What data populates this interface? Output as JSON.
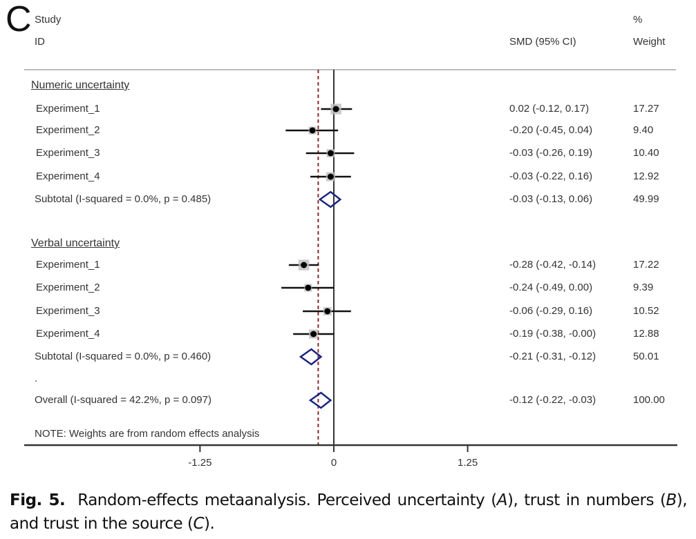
{
  "panel_letter": "C",
  "headers": {
    "study_line1": "Study",
    "study_line2": "ID",
    "smd": "SMD (95% CI)",
    "weight_line1": "%",
    "weight_line2": "Weight"
  },
  "chart_data": {
    "type": "forest",
    "title": "",
    "xlabel": "",
    "xlim": [
      -2.25,
      2.3
    ],
    "xticks": [
      -1.25,
      0,
      1.25
    ],
    "xtick_labels": [
      "-1.25",
      "0",
      "1.25"
    ],
    "null_line": 0,
    "overall_line": -0.12,
    "groups": [
      {
        "name": "Numeric uncertainty",
        "studies": [
          {
            "label": "Experiment_1",
            "smd": 0.02,
            "lo": -0.12,
            "hi": 0.17,
            "ci_text": "0.02 (-0.12, 0.17)",
            "weight": "17.27"
          },
          {
            "label": "Experiment_2",
            "smd": -0.2,
            "lo": -0.45,
            "hi": 0.04,
            "ci_text": "-0.20 (-0.45, 0.04)",
            "weight": "9.40"
          },
          {
            "label": "Experiment_3",
            "smd": -0.03,
            "lo": -0.26,
            "hi": 0.19,
            "ci_text": "-0.03 (-0.26, 0.19)",
            "weight": "10.40"
          },
          {
            "label": "Experiment_4",
            "smd": -0.03,
            "lo": -0.22,
            "hi": 0.16,
            "ci_text": "-0.03 (-0.22, 0.16)",
            "weight": "12.92"
          }
        ],
        "subtotal": {
          "label": "Subtotal  (I-squared = 0.0%, p = 0.485)",
          "smd": -0.03,
          "lo": -0.13,
          "hi": 0.06,
          "ci_text": "-0.03 (-0.13, 0.06)",
          "weight": "49.99"
        }
      },
      {
        "name": "Verbal uncertainty",
        "studies": [
          {
            "label": "Experiment_1",
            "smd": -0.28,
            "lo": -0.42,
            "hi": -0.14,
            "ci_text": "-0.28 (-0.42, -0.14)",
            "weight": "17.22"
          },
          {
            "label": "Experiment_2",
            "smd": -0.24,
            "lo": -0.49,
            "hi": 0.0,
            "ci_text": "-0.24 (-0.49, 0.00)",
            "weight": "9.39"
          },
          {
            "label": "Experiment_3",
            "smd": -0.06,
            "lo": -0.29,
            "hi": 0.16,
            "ci_text": "-0.06 (-0.29, 0.16)",
            "weight": "10.52"
          },
          {
            "label": "Experiment_4",
            "smd": -0.19,
            "lo": -0.38,
            "hi": -0.0,
            "ci_text": "-0.19 (-0.38, -0.00)",
            "weight": "12.88"
          }
        ],
        "subtotal": {
          "label": "Subtotal  (I-squared = 0.0%, p = 0.460)",
          "smd": -0.21,
          "lo": -0.31,
          "hi": -0.12,
          "ci_text": "-0.21 (-0.31, -0.12)",
          "weight": "50.01"
        }
      }
    ],
    "separator": ".",
    "overall": {
      "label": "Overall  (I-squared = 42.2%, p = 0.097)",
      "smd": -0.12,
      "lo": -0.22,
      "hi": -0.03,
      "ci_text": "-0.12 (-0.22, -0.03)",
      "weight": "100.00"
    },
    "note": "NOTE: Weights are from random effects analysis",
    "colors": {
      "diamond": "#1a237e",
      "overall_line": "#8b2a2a",
      "ci_line": "#111111",
      "weight_box": "#bdbdbd",
      "axis": "#333333",
      "rule": "#bbbbbb"
    }
  },
  "caption": {
    "fig_label": "Fig. 5.",
    "text_1": "Random-effects metaanalysis. Perceived uncertainty (",
    "a": "A",
    "text_2": "), trust in numbers (",
    "b": "B",
    "text_3": "), and trust in the source (",
    "c": "C",
    "text_4": ")."
  }
}
